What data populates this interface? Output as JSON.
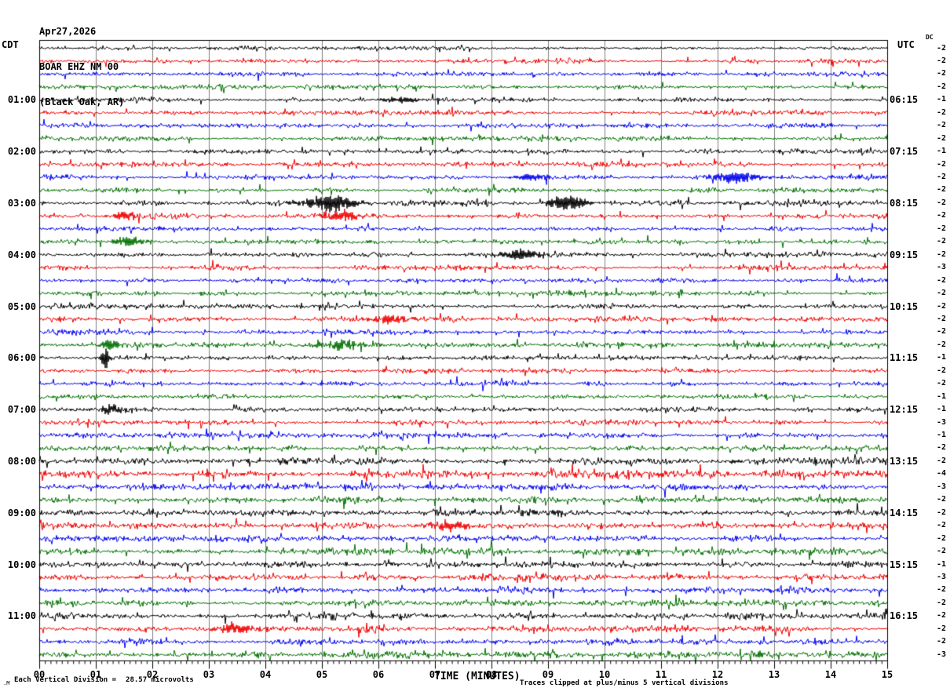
{
  "title": {
    "date": "Apr27,2026",
    "station": "BOAR EHZ NM 00",
    "location": "(Black Oak, AR)"
  },
  "axis_headers": {
    "left": "CDT",
    "right": "UTC",
    "dc": "DC"
  },
  "left_time_labels": [
    "01:00",
    "02:00",
    "03:00",
    "04:00",
    "05:00",
    "06:00",
    "07:00",
    "08:00",
    "09:00",
    "10:00",
    "11:00"
  ],
  "right_time_labels": [
    "06:15",
    "07:15",
    "08:15",
    "09:15",
    "10:15",
    "11:15",
    "12:15",
    "13:15",
    "14:15",
    "15:15",
    "16:15"
  ],
  "bottom_tick_labels": [
    "00",
    "01",
    "02",
    "03",
    "04",
    "05",
    "06",
    "07",
    "08",
    "09",
    "10",
    "11",
    "12",
    "13",
    "14",
    "15"
  ],
  "x_axis_title": "TIME (MINUTES)",
  "footer": {
    "corner_mark": ".M",
    "scale_label": "Each Vertical Division =",
    "scale_value": "28.57 microvolts",
    "clip_note": "Traces clipped at plus/minus 5 vertical divisions"
  },
  "chart_data": {
    "type": "line",
    "subtype": "helicorder_seismogram",
    "title": "BOAR EHZ NM 00 (Black Oak, AR) Apr27,2026",
    "xlabel": "TIME (MINUTES)",
    "x_range_minutes": [
      0,
      15
    ],
    "rows": 48,
    "minutes_per_row": 15,
    "first_row_start_cdt": "00:00",
    "last_row_start_cdt": "11:45",
    "timezone_left": "CDT",
    "timezone_right": "UTC",
    "microvolts_per_division": 28.57,
    "clip_divisions": 5,
    "grid_on": true,
    "grid_color": "#808080",
    "trace_color_cycle": [
      "#000000",
      "#ee0000",
      "#0000ee",
      "#007000"
    ],
    "dc_offsets": [
      -2,
      -2,
      -2,
      -2,
      -1,
      -2,
      -2,
      -2,
      -1,
      -2,
      -2,
      -2,
      -2,
      -2,
      -2,
      -2,
      -2,
      -3,
      -2,
      -2,
      -2,
      -2,
      -2,
      -2,
      -1,
      -2,
      -2,
      -1,
      -1,
      -3,
      -1,
      -2,
      -2,
      -4,
      -3,
      -2,
      -2,
      -2,
      -2,
      -2,
      -1,
      -3,
      -2,
      -2,
      -2,
      -2,
      -2,
      -3
    ],
    "noise_scale": [
      0.9,
      0.95,
      0.9,
      0.95,
      0.95,
      1.0,
      0.95,
      1.0,
      0.95,
      1.0,
      1.05,
      1.0,
      1.1,
      1.1,
      1.0,
      1.05,
      1.0,
      1.05,
      1.0,
      1.0,
      1.15,
      1.1,
      1.05,
      1.1,
      1.0,
      1.0,
      1.0,
      1.0,
      1.05,
      1.05,
      1.1,
      1.1,
      1.5,
      1.65,
      1.5,
      1.45,
      1.5,
      1.45,
      1.35,
      1.4,
      1.35,
      1.4,
      1.3,
      1.35,
      1.45,
      1.4,
      1.35,
      1.4
    ],
    "events": [
      {
        "row": 4,
        "minute": 6.4,
        "amp": 4,
        "width": 0.25
      },
      {
        "row": 10,
        "minute": 8.7,
        "amp": 5,
        "width": 0.2
      },
      {
        "row": 10,
        "minute": 12.3,
        "amp": 7,
        "width": 0.3
      },
      {
        "row": 12,
        "minute": 5.15,
        "amp": 9,
        "width": 0.35
      },
      {
        "row": 12,
        "minute": 9.35,
        "amp": 10,
        "width": 0.25
      },
      {
        "row": 13,
        "minute": 5.35,
        "amp": 6,
        "width": 0.25
      },
      {
        "row": 13,
        "minute": 1.5,
        "amp": 5,
        "width": 0.15
      },
      {
        "row": 15,
        "minute": 1.55,
        "amp": 6,
        "width": 0.2
      },
      {
        "row": 16,
        "minute": 8.5,
        "amp": 6,
        "width": 0.25
      },
      {
        "row": 21,
        "minute": 6.2,
        "amp": 5,
        "width": 0.25
      },
      {
        "row": 23,
        "minute": 1.25,
        "amp": 8,
        "width": 0.1
      },
      {
        "row": 23,
        "minute": 5.4,
        "amp": 5,
        "width": 0.25
      },
      {
        "row": 24,
        "minute": 1.17,
        "amp": 15,
        "width": 0.05
      },
      {
        "row": 28,
        "minute": 1.3,
        "amp": 6,
        "width": 0.15
      },
      {
        "row": 37,
        "minute": 7.2,
        "amp": 6,
        "width": 0.25
      },
      {
        "row": 45,
        "minute": 3.5,
        "amp": 6,
        "width": 0.25
      }
    ]
  }
}
